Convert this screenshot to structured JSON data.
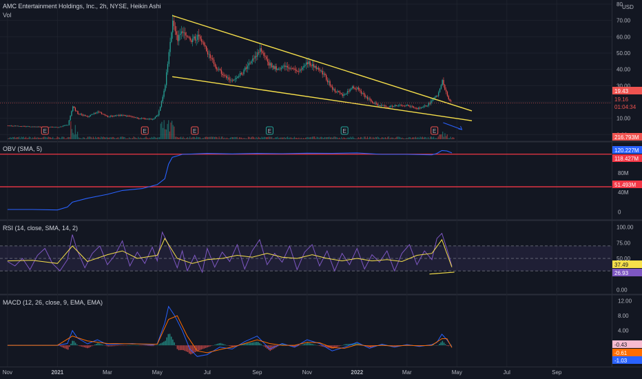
{
  "header": {
    "title": "AMC Entertainment Holdings, Inc., 2h, NYSE, Heikin Ashi",
    "vol_label": "Vol",
    "obv_label": "OBV (SMA, 5)",
    "rsi_label": "RSI (14, close, SMA, 14, 2)",
    "macd_label": "MACD (12, 26, close, 9, EMA, EMA)"
  },
  "colors": {
    "background": "#131722",
    "up": "#26a69a",
    "down": "#ef5350",
    "trendline": "#f7e04b",
    "obv_line": "#2962ff",
    "rsi_line": "#7e57c2",
    "rsi_ma": "#f7e04b",
    "macd_line": "#2962ff",
    "signal_line": "#ff6d00",
    "level_red": "#f23645"
  },
  "chart_data": [
    {
      "type": "candlestick",
      "panel": "price",
      "currency": "USD",
      "y_ticks": [
        "80",
        "70.00",
        "60.00",
        "50.00",
        "40.00",
        "30.00",
        "20.00",
        "10.00",
        "0.00"
      ],
      "ylim": [
        -2,
        80
      ],
      "x_ticks": [
        "Nov",
        "2021",
        "Mar",
        "May",
        "Jul",
        "Sep",
        "Nov",
        "2022",
        "Mar",
        "May",
        "Jul",
        "Sep"
      ],
      "x_tick_times": [
        0,
        2,
        4,
        6,
        8,
        10,
        12,
        14,
        16,
        18,
        20,
        22
      ],
      "xlim": [
        -0.3,
        24.2
      ],
      "price_path": [
        [
          0,
          5.5
        ],
        [
          1,
          4.8
        ],
        [
          2,
          4.5
        ],
        [
          2.4,
          6
        ],
        [
          2.6,
          17
        ],
        [
          2.8,
          13
        ],
        [
          3.2,
          11
        ],
        [
          3.6,
          14
        ],
        [
          4,
          11
        ],
        [
          4.6,
          12
        ],
        [
          5.2,
          10
        ],
        [
          5.8,
          9.5
        ],
        [
          6,
          12
        ],
        [
          6.15,
          20
        ],
        [
          6.3,
          30
        ],
        [
          6.45,
          52
        ],
        [
          6.6,
          68
        ],
        [
          6.8,
          58
        ],
        [
          7,
          64
        ],
        [
          7.3,
          58
        ],
        [
          7.6,
          60
        ],
        [
          8,
          50
        ],
        [
          8.3,
          42
        ],
        [
          8.6,
          37
        ],
        [
          9,
          33
        ],
        [
          9.4,
          38
        ],
        [
          9.8,
          46
        ],
        [
          10.1,
          52
        ],
        [
          10.4,
          44
        ],
        [
          10.8,
          40
        ],
        [
          11.2,
          42
        ],
        [
          11.6,
          38
        ],
        [
          12,
          44
        ],
        [
          12.3,
          42
        ],
        [
          12.6,
          38
        ],
        [
          13,
          28
        ],
        [
          13.4,
          24
        ],
        [
          13.8,
          29
        ],
        [
          14,
          28
        ],
        [
          14.4,
          22
        ],
        [
          14.8,
          18
        ],
        [
          15.2,
          17
        ],
        [
          15.6,
          18
        ],
        [
          16,
          18
        ],
        [
          16.4,
          16
        ],
        [
          16.8,
          18
        ],
        [
          17,
          21
        ],
        [
          17.2,
          24
        ],
        [
          17.4,
          33
        ],
        [
          17.6,
          23
        ],
        [
          17.8,
          19.4
        ]
      ],
      "last_price": 19.43,
      "price_labels": [
        "19.43",
        "19.16",
        "01:04:34"
      ],
      "volume_label": "216.793M",
      "earnings_markers_at": [
        1.5,
        5.5,
        7.5,
        10.5,
        13.5,
        17.1
      ],
      "earnings_marker_text": "E",
      "trendlines": [
        {
          "from": [
            6.6,
            73
          ],
          "to": [
            18.6,
            14.5
          ]
        },
        {
          "from": [
            6.6,
            35.5
          ],
          "to": [
            18.6,
            8.5
          ]
        }
      ]
    },
    {
      "type": "line",
      "panel": "obv",
      "y_ticks": [
        "80M",
        "40M",
        "0"
      ],
      "ylim": [
        -12,
        135
      ],
      "values": [
        [
          0,
          5
        ],
        [
          1,
          5
        ],
        [
          2,
          4
        ],
        [
          2.4,
          10
        ],
        [
          2.6,
          20
        ],
        [
          3.2,
          28
        ],
        [
          4,
          36
        ],
        [
          4.6,
          44
        ],
        [
          5.4,
          48
        ],
        [
          6,
          56
        ],
        [
          6.3,
          68
        ],
        [
          6.45,
          98
        ],
        [
          6.6,
          112
        ],
        [
          7,
          118
        ],
        [
          8,
          120
        ],
        [
          9,
          119
        ],
        [
          10,
          120
        ],
        [
          11,
          119.5
        ],
        [
          12,
          120.5
        ],
        [
          13,
          120
        ],
        [
          14,
          121
        ],
        [
          15,
          118
        ],
        [
          16,
          118
        ],
        [
          17,
          117
        ],
        [
          17.2,
          120
        ],
        [
          17.4,
          126
        ],
        [
          17.6,
          125
        ],
        [
          17.8,
          121
        ]
      ],
      "levels": [
        118.427,
        51.493
      ],
      "labels": [
        "120.227M",
        "118.427M",
        "51.493M"
      ]
    },
    {
      "type": "line",
      "panel": "rsi",
      "y_ticks": [
        "100.00",
        "75.00",
        "50.00",
        "25.00",
        "0.00"
      ],
      "bands": [
        70,
        50,
        30
      ],
      "ylim": [
        -4,
        104
      ],
      "rsi": [
        [
          0,
          45
        ],
        [
          0.3,
          38
        ],
        [
          0.6,
          50
        ],
        [
          0.9,
          32
        ],
        [
          1.2,
          55
        ],
        [
          1.5,
          66
        ],
        [
          1.8,
          42
        ],
        [
          2.1,
          30
        ],
        [
          2.4,
          48
        ],
        [
          2.6,
          88
        ],
        [
          2.8,
          62
        ],
        [
          3.1,
          35
        ],
        [
          3.4,
          58
        ],
        [
          3.7,
          70
        ],
        [
          4,
          40
        ],
        [
          4.3,
          55
        ],
        [
          4.6,
          78
        ],
        [
          4.9,
          38
        ],
        [
          5.2,
          60
        ],
        [
          5.5,
          42
        ],
        [
          5.8,
          68
        ],
        [
          6,
          46
        ],
        [
          6.2,
          92
        ],
        [
          6.4,
          76
        ],
        [
          6.6,
          55
        ],
        [
          6.8,
          35
        ],
        [
          7,
          62
        ],
        [
          7.2,
          30
        ],
        [
          7.5,
          55
        ],
        [
          7.8,
          28
        ],
        [
          8,
          66
        ],
        [
          8.3,
          36
        ],
        [
          8.6,
          60
        ],
        [
          8.9,
          45
        ],
        [
          9.2,
          72
        ],
        [
          9.5,
          33
        ],
        [
          9.8,
          62
        ],
        [
          10.1,
          80
        ],
        [
          10.4,
          40
        ],
        [
          10.7,
          58
        ],
        [
          11,
          44
        ],
        [
          11.3,
          70
        ],
        [
          11.6,
          32
        ],
        [
          11.9,
          60
        ],
        [
          12.2,
          72
        ],
        [
          12.5,
          38
        ],
        [
          12.8,
          62
        ],
        [
          13.1,
          30
        ],
        [
          13.4,
          58
        ],
        [
          13.7,
          40
        ],
        [
          14,
          66
        ],
        [
          14.3,
          33
        ],
        [
          14.6,
          56
        ],
        [
          14.9,
          44
        ],
        [
          15.2,
          62
        ],
        [
          15.5,
          30
        ],
        [
          15.8,
          58
        ],
        [
          16.1,
          72
        ],
        [
          16.4,
          40
        ],
        [
          16.7,
          62
        ],
        [
          17,
          48
        ],
        [
          17.2,
          82
        ],
        [
          17.4,
          90
        ],
        [
          17.6,
          65
        ],
        [
          17.8,
          37.5
        ]
      ],
      "rsi_ma": [
        [
          0,
          46
        ],
        [
          1,
          47
        ],
        [
          2,
          42
        ],
        [
          2.6,
          70
        ],
        [
          3.2,
          45
        ],
        [
          4,
          56
        ],
        [
          4.6,
          62
        ],
        [
          5.2,
          50
        ],
        [
          6,
          55
        ],
        [
          6.3,
          82
        ],
        [
          6.8,
          50
        ],
        [
          7.4,
          42
        ],
        [
          8,
          48
        ],
        [
          8.6,
          50
        ],
        [
          9.2,
          55
        ],
        [
          9.8,
          52
        ],
        [
          10.4,
          58
        ],
        [
          11,
          52
        ],
        [
          11.6,
          50
        ],
        [
          12.2,
          56
        ],
        [
          12.8,
          50
        ],
        [
          13.4,
          46
        ],
        [
          14,
          50
        ],
        [
          14.6,
          46
        ],
        [
          15.2,
          48
        ],
        [
          15.8,
          45
        ],
        [
          16.4,
          55
        ],
        [
          17,
          58
        ],
        [
          17.4,
          80
        ],
        [
          17.8,
          36
        ]
      ],
      "divergence_line": {
        "from": [
          16.9,
          25
        ],
        "to": [
          17.9,
          28
        ]
      },
      "labels": [
        "37.49",
        "26.93"
      ]
    },
    {
      "type": "line",
      "panel": "macd",
      "y_ticks": [
        "12.00",
        "8.00",
        "4.00",
        "0.00"
      ],
      "ylim": [
        -5,
        12.5
      ],
      "macd": [
        [
          0,
          0
        ],
        [
          1,
          0
        ],
        [
          2,
          0
        ],
        [
          2.4,
          0.5
        ],
        [
          2.6,
          4
        ],
        [
          2.8,
          2
        ],
        [
          3.2,
          0.4
        ],
        [
          3.6,
          1.5
        ],
        [
          4,
          0.2
        ],
        [
          5,
          0.5
        ],
        [
          5.8,
          0.1
        ],
        [
          6,
          0.4
        ],
        [
          6.3,
          6
        ],
        [
          6.45,
          10.5
        ],
        [
          6.7,
          8
        ],
        [
          7,
          4
        ],
        [
          7.3,
          -1
        ],
        [
          7.6,
          -3
        ],
        [
          8,
          -2.5
        ],
        [
          8.5,
          -0.5
        ],
        [
          9,
          -1
        ],
        [
          9.5,
          1
        ],
        [
          10,
          2.5
        ],
        [
          10.5,
          -1
        ],
        [
          11,
          0.5
        ],
        [
          11.5,
          -0.5
        ],
        [
          12,
          1.5
        ],
        [
          12.5,
          0.5
        ],
        [
          13,
          -1.5
        ],
        [
          13.5,
          -0.5
        ],
        [
          14,
          0.8
        ],
        [
          14.5,
          -0.8
        ],
        [
          15,
          0.3
        ],
        [
          15.5,
          -0.5
        ],
        [
          16,
          0.2
        ],
        [
          16.5,
          -0.3
        ],
        [
          17,
          0.2
        ],
        [
          17.2,
          0.8
        ],
        [
          17.4,
          3
        ],
        [
          17.6,
          1.5
        ],
        [
          17.8,
          -0.4
        ]
      ],
      "signal": [
        [
          0,
          0
        ],
        [
          2,
          0
        ],
        [
          2.6,
          2.5
        ],
        [
          3.2,
          1.2
        ],
        [
          4,
          0.5
        ],
        [
          6,
          0.3
        ],
        [
          6.45,
          7
        ],
        [
          6.8,
          8
        ],
        [
          7.2,
          2.5
        ],
        [
          7.6,
          -1.5
        ],
        [
          8,
          -2
        ],
        [
          8.6,
          -1
        ],
        [
          9,
          -0.5
        ],
        [
          9.5,
          0.5
        ],
        [
          10,
          1.5
        ],
        [
          10.5,
          0.5
        ],
        [
          11,
          0
        ],
        [
          11.5,
          0
        ],
        [
          12,
          0.8
        ],
        [
          12.5,
          0.7
        ],
        [
          13,
          -0.6
        ],
        [
          13.5,
          -0.8
        ],
        [
          14,
          0.2
        ],
        [
          14.5,
          -0.2
        ],
        [
          15,
          0
        ],
        [
          15.5,
          -0.2
        ],
        [
          16,
          0
        ],
        [
          16.5,
          -0.1
        ],
        [
          17,
          0
        ],
        [
          17.4,
          1.8
        ],
        [
          17.6,
          1.8
        ],
        [
          17.8,
          -0.6
        ]
      ],
      "labels": [
        "-0.43",
        "-0.61",
        "-1.03"
      ]
    }
  ]
}
